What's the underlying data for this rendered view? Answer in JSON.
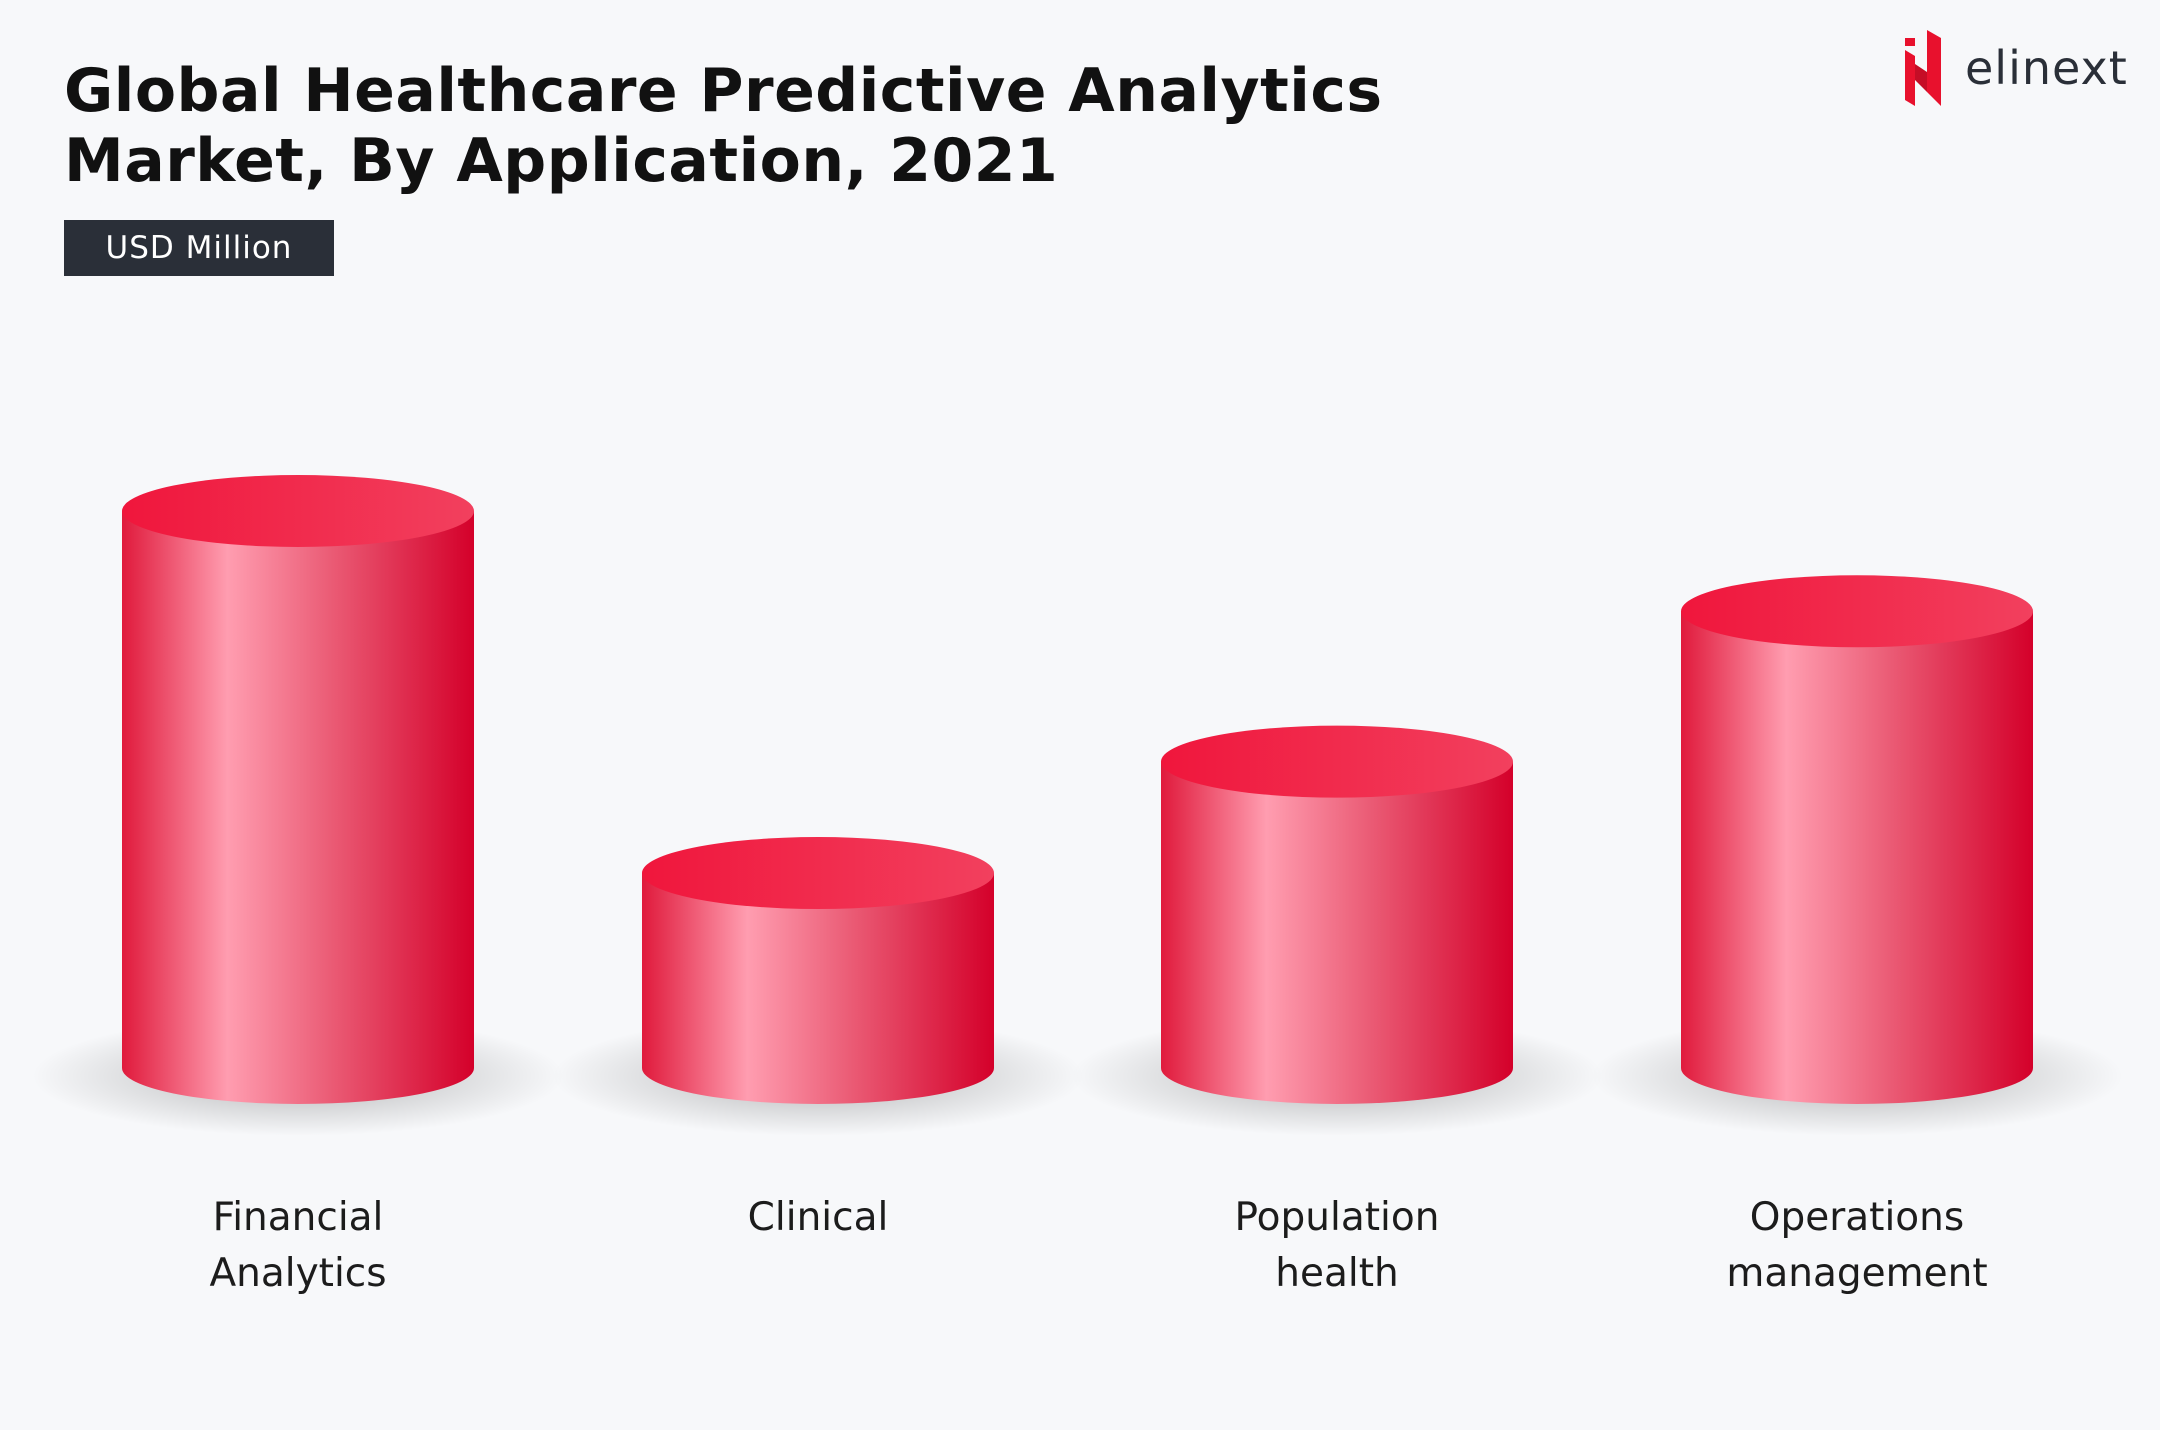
{
  "header": {
    "title_line1": "Global Healthcare Predictive Analytics",
    "title_line2": "Market, By Application, 2021",
    "unit_badge": "USD Million"
  },
  "logo": {
    "text": "elinext",
    "icon": "elinext-logo-icon",
    "color": "#e8112d"
  },
  "chart_data": {
    "type": "bar",
    "style": "3d-cylinder",
    "title": "Global Healthcare Predictive Analytics Market, By Application, 2021",
    "ylabel": "USD Million",
    "xlabel": "",
    "note": "No axis or data labels shown; values are relative estimates (tallest = 1.0)",
    "categories": [
      {
        "line1": "Financial",
        "line2": "Analytics"
      },
      {
        "line1": "Clinical",
        "line2": ""
      },
      {
        "line1": "Population",
        "line2": "health"
      },
      {
        "line1": "Operations",
        "line2": "management"
      }
    ],
    "values": [
      1.0,
      0.35,
      0.55,
      0.82
    ],
    "ylim": [
      0,
      1.0
    ],
    "grid": false,
    "colors": {
      "dark": "#d4002a",
      "light": "#ff9db0",
      "top": "#f0163c",
      "top_light": "#f2405e"
    }
  }
}
